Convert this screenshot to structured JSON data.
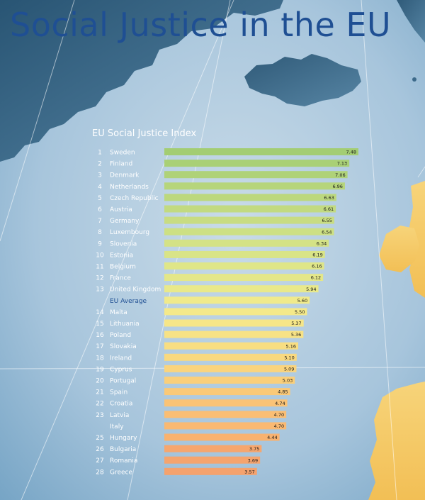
{
  "page_title": "Social Justice in the EU",
  "colors": {
    "title": "#1f4f93",
    "label_text": "#ffffff",
    "average_label": "#1f4f93",
    "value_text": "#1a1a1a",
    "sea_light": "#c2d6e5",
    "sea_dark": "#6fa0c2",
    "land_dark": "#2f5f80",
    "land_yellow": "#f5c962"
  },
  "chart_data": {
    "type": "bar",
    "orientation": "horizontal",
    "title": "EU Social Justice Index",
    "xlabel": "",
    "ylabel": "",
    "xlim": [
      0,
      7.8
    ],
    "grid": false,
    "legend": "none",
    "rows": [
      {
        "rank": "1",
        "country": "Sweden",
        "value": 7.48,
        "value_label": "7.48",
        "color": "#a3cd73"
      },
      {
        "rank": "2",
        "country": "Finland",
        "value": 7.13,
        "value_label": "7.13",
        "color": "#a9d076"
      },
      {
        "rank": "3",
        "country": "Denmark",
        "value": 7.06,
        "value_label": "7.06",
        "color": "#afd278"
      },
      {
        "rank": "4",
        "country": "Netherlands",
        "value": 6.96,
        "value_label": "6.96",
        "color": "#b6d57b"
      },
      {
        "rank": "5",
        "country": "Czech Republic",
        "value": 6.63,
        "value_label": "6.63",
        "color": "#bcd87d"
      },
      {
        "rank": "6",
        "country": "Austria",
        "value": 6.61,
        "value_label": "6.61",
        "color": "#c2da80"
      },
      {
        "rank": "7",
        "country": "Germany",
        "value": 6.55,
        "value_label": "6.55",
        "color": "#c8dc82"
      },
      {
        "rank": "8",
        "country": "Luxembourg",
        "value": 6.54,
        "value_label": "6.54",
        "color": "#cde084"
      },
      {
        "rank": "9",
        "country": "Slovenia",
        "value": 6.34,
        "value_label": "6.34",
        "color": "#d4e286"
      },
      {
        "rank": "10",
        "country": "Estonia",
        "value": 6.19,
        "value_label": "6.19",
        "color": "#d9e487"
      },
      {
        "rank": "11",
        "country": "Belgium",
        "value": 6.16,
        "value_label": "6.16",
        "color": "#dfe688"
      },
      {
        "rank": "12",
        "country": "France",
        "value": 6.12,
        "value_label": "6.12",
        "color": "#e4e789"
      },
      {
        "rank": "13",
        "country": "United Kingdom",
        "value": 5.94,
        "value_label": "5.94",
        "color": "#e9e98a"
      },
      {
        "rank": "",
        "country": "EU Average",
        "value": 5.6,
        "value_label": "5.60",
        "color": "#f0ea8b",
        "is_average": true
      },
      {
        "rank": "14",
        "country": "Malta",
        "value": 5.5,
        "value_label": "5.50",
        "color": "#f4e98a"
      },
      {
        "rank": "15",
        "country": "Lithuania",
        "value": 5.37,
        "value_label": "5.37",
        "color": "#f6e688"
      },
      {
        "rank": "16",
        "country": "Poland",
        "value": 5.36,
        "value_label": "5.36",
        "color": "#f7e285"
      },
      {
        "rank": "17",
        "country": "Slovakia",
        "value": 5.16,
        "value_label": "5.16",
        "color": "#f8de82"
      },
      {
        "rank": "18",
        "country": "Ireland",
        "value": 5.1,
        "value_label": "5.10",
        "color": "#f9d97f"
      },
      {
        "rank": "19",
        "country": "Cyprus",
        "value": 5.09,
        "value_label": "5.09",
        "color": "#fad47d"
      },
      {
        "rank": "20",
        "country": "Portugal",
        "value": 5.03,
        "value_label": "5.03",
        "color": "#facf7a"
      },
      {
        "rank": "21",
        "country": "Spain",
        "value": 4.85,
        "value_label": "4.85",
        "color": "#fac978"
      },
      {
        "rank": "22",
        "country": "Croatia",
        "value": 4.74,
        "value_label": "4.74",
        "color": "#fac376"
      },
      {
        "rank": "23",
        "country": "Latvia",
        "value": 4.7,
        "value_label": "4.70",
        "color": "#fabe74"
      },
      {
        "rank": "",
        "country": "Italy",
        "value": 4.7,
        "value_label": "4.70",
        "color": "#fab972"
      },
      {
        "rank": "25",
        "country": "Hungary",
        "value": 4.44,
        "value_label": "4.44",
        "color": "#f9b26f"
      },
      {
        "rank": "26",
        "country": "Bulgaria",
        "value": 3.75,
        "value_label": "3.75",
        "color": "#f6a66e"
      },
      {
        "rank": "27",
        "country": "Romania",
        "value": 3.69,
        "value_label": "3.69",
        "color": "#f5a46e"
      },
      {
        "rank": "28",
        "country": "Greece",
        "value": 3.57,
        "value_label": "3.57",
        "color": "#f4a26e"
      }
    ]
  }
}
